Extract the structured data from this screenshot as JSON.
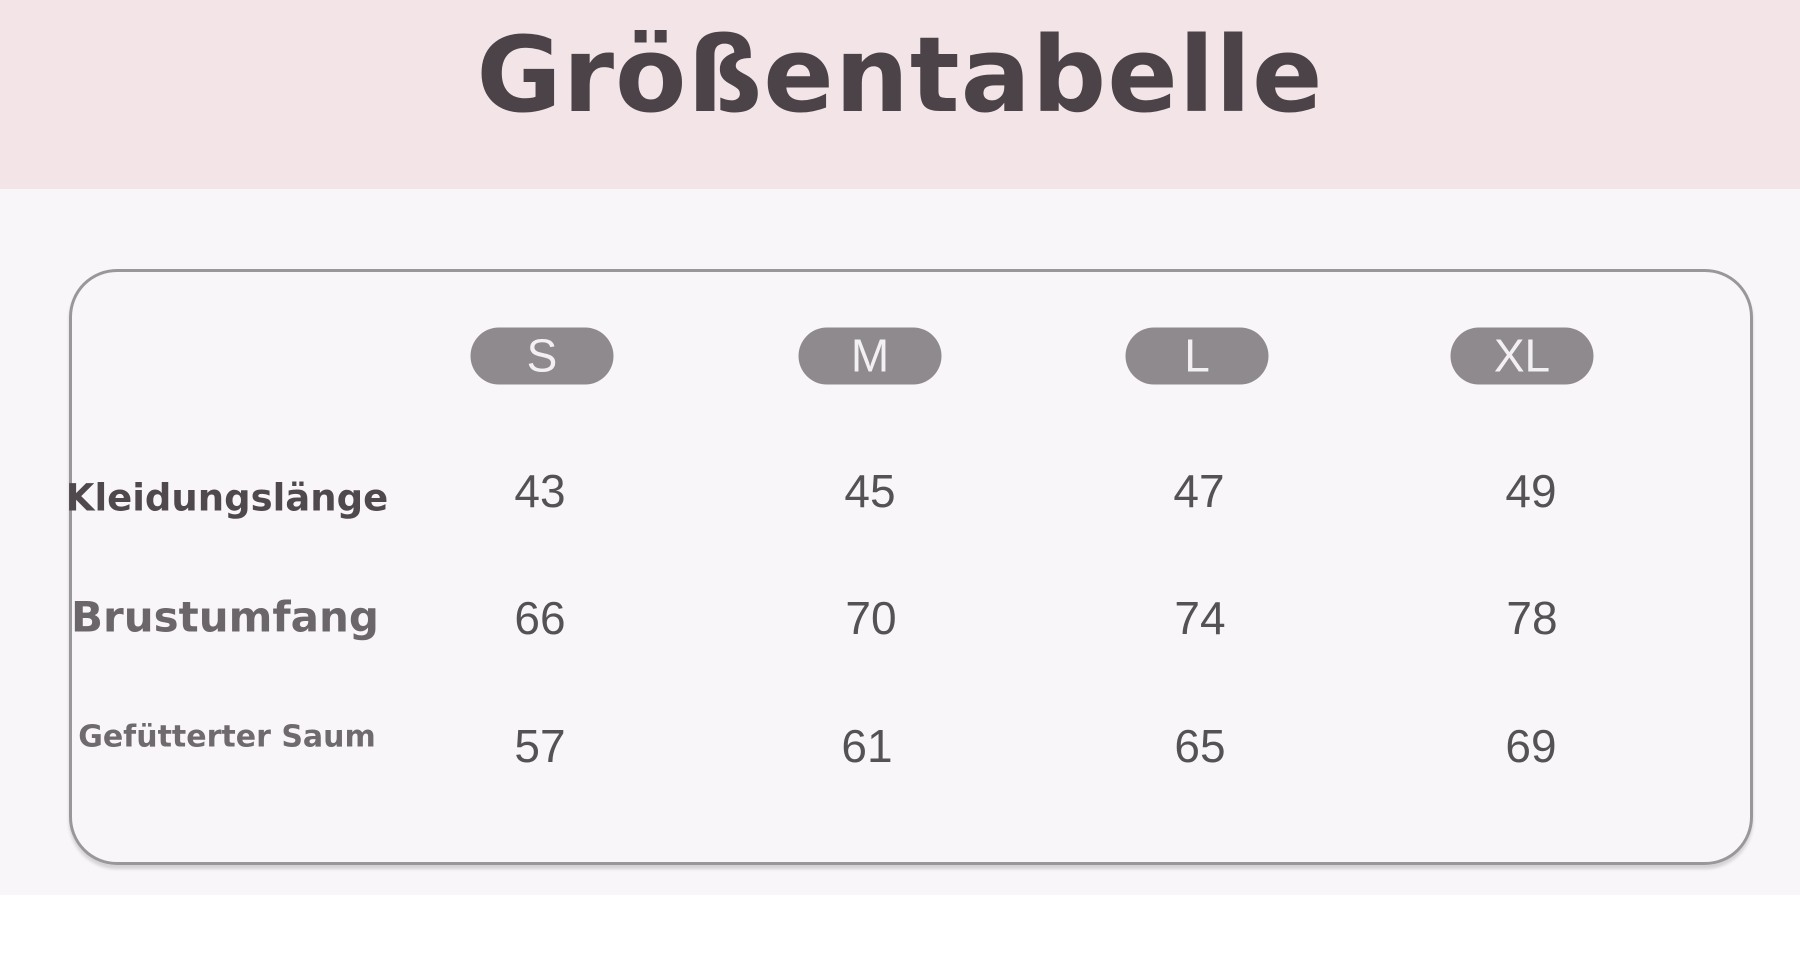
{
  "title": "Größentabelle",
  "sizes": [
    "S",
    "M",
    "L",
    "XL"
  ],
  "rows": [
    {
      "label": "Kleidungslänge",
      "values": [
        "43",
        "45",
        "47",
        "49"
      ]
    },
    {
      "label": "Brustumfang",
      "values": [
        "66",
        "70",
        "74",
        "78"
      ]
    },
    {
      "label": "Gefütterter Saum",
      "values": [
        "57",
        "61",
        "65",
        "69"
      ]
    }
  ],
  "colors": {
    "header_bg": "#f3e4e8",
    "pill": "#8e8a8e",
    "text": "#4b4347"
  }
}
